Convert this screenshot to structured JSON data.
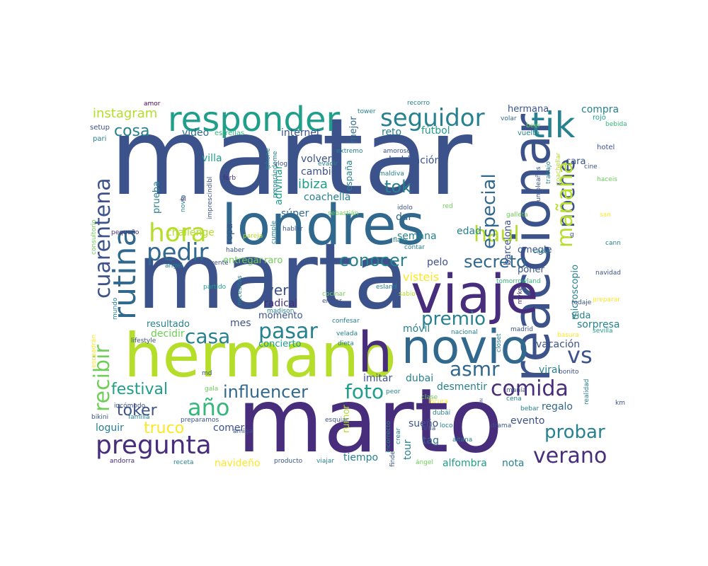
{
  "palette": {
    "navy": "#3b528b",
    "indigo": "#472d7b",
    "purple": "#440154",
    "blue": "#31688e",
    "teal": "#26828e",
    "teal2": "#1f9e89",
    "green": "#35b779",
    "lime": "#6ece58",
    "yellowgreen": "#b5de2b",
    "yellow": "#fde725"
  },
  "words": [
    {
      "text": "martar",
      "color": "navy"
    },
    {
      "text": "marta",
      "color": "navy"
    },
    {
      "text": "marto",
      "color": "indigo"
    },
    {
      "text": "londres",
      "color": "blue"
    },
    {
      "text": "hermano",
      "color": "yellowgreen"
    },
    {
      "text": "reaccionar",
      "color": "navy"
    },
    {
      "text": "viaje",
      "color": "indigo"
    },
    {
      "text": "novio",
      "color": "blue"
    },
    {
      "text": "h",
      "color": "indigo"
    },
    {
      "text": "responder",
      "color": "teal2"
    },
    {
      "text": "tik",
      "color": "teal"
    },
    {
      "text": "seguidor",
      "color": "teal"
    },
    {
      "text": "rutina",
      "color": "blue"
    },
    {
      "text": "cuarentena",
      "color": "navy"
    },
    {
      "text": "hora",
      "color": "yellowgreen"
    },
    {
      "text": "pedir",
      "color": "blue"
    },
    {
      "text": "noche",
      "color": "navy"
    },
    {
      "text": "mañana",
      "color": "yellowgreen"
    },
    {
      "text": "haul",
      "color": "yellowgreen"
    },
    {
      "text": "especial",
      "color": "blue"
    },
    {
      "text": "tok",
      "color": "teal"
    },
    {
      "text": "cosa",
      "color": "teal"
    },
    {
      "text": "instagram",
      "color": "yellowgreen"
    },
    {
      "text": "casa",
      "color": "teal"
    },
    {
      "text": "pasar",
      "color": "teal"
    },
    {
      "text": "conocer",
      "color": "teal"
    },
    {
      "text": "secreto",
      "color": "blue"
    },
    {
      "text": "premio",
      "color": "teal"
    },
    {
      "text": "comida",
      "color": "indigo"
    },
    {
      "text": "vs",
      "color": "navy"
    },
    {
      "text": "asmr",
      "color": "blue"
    },
    {
      "text": "recibir",
      "color": "lime"
    },
    {
      "text": "año",
      "color": "green"
    },
    {
      "text": "festival",
      "color": "teal2"
    },
    {
      "text": "influencer",
      "color": "blue"
    },
    {
      "text": "foto",
      "color": "teal2"
    },
    {
      "text": "pregunta",
      "color": "indigo"
    },
    {
      "text": "truco",
      "color": "yellow"
    },
    {
      "text": "toker",
      "color": "navy"
    },
    {
      "text": "probar",
      "color": "teal"
    },
    {
      "text": "verano",
      "color": "indigo"
    },
    {
      "text": "ver",
      "color": "navy"
    },
    {
      "text": "video",
      "color": "blue"
    },
    {
      "text": "villa",
      "color": "teal2"
    },
    {
      "text": "internet",
      "color": "navy"
    },
    {
      "text": "reto",
      "color": "teal"
    },
    {
      "text": "fútbol",
      "color": "teal2"
    },
    {
      "text": "volver",
      "color": "navy"
    },
    {
      "text": "habitación",
      "color": "navy"
    },
    {
      "text": "cambio",
      "color": "navy"
    },
    {
      "text": "ibiza",
      "color": "teal2"
    },
    {
      "text": "coachella",
      "color": "teal"
    },
    {
      "text": "súper",
      "color": "blue"
    },
    {
      "text": "semana",
      "color": "teal"
    },
    {
      "text": "dar",
      "color": "blue"
    },
    {
      "text": "edad",
      "color": "teal"
    },
    {
      "text": "barcelona",
      "color": "navy"
    },
    {
      "text": "omegle",
      "color": "navy"
    },
    {
      "text": "microscopio",
      "color": "teal"
    },
    {
      "text": "vida",
      "color": "teal"
    },
    {
      "text": "poner",
      "color": "navy"
    },
    {
      "text": "compra",
      "color": "teal"
    },
    {
      "text": "hermana",
      "color": "navy"
    },
    {
      "text": "cara",
      "color": "navy"
    },
    {
      "text": "challenge",
      "color": "yellowgreen"
    },
    {
      "text": "prueba",
      "color": "teal"
    },
    {
      "text": "adivinar",
      "color": "teal2"
    },
    {
      "text": "ropa",
      "color": "navy"
    },
    {
      "text": "entregar",
      "color": "lime"
    },
    {
      "text": "raro",
      "color": "lime"
    },
    {
      "text": "visteis",
      "color": "yellow"
    },
    {
      "text": "radical",
      "color": "indigo"
    },
    {
      "text": "mes",
      "color": "navy"
    },
    {
      "text": "resultado",
      "color": "teal"
    },
    {
      "text": "momento",
      "color": "navy"
    },
    {
      "text": "decidir",
      "color": "lime"
    },
    {
      "text": "concierto",
      "color": "teal2"
    },
    {
      "text": "móvil",
      "color": "teal"
    },
    {
      "text": "sorpresa",
      "color": "teal"
    },
    {
      "text": "vacación",
      "color": "navy"
    },
    {
      "text": "viral",
      "color": "teal"
    },
    {
      "text": "dubai",
      "color": "teal"
    },
    {
      "text": "imitar",
      "color": "navy"
    },
    {
      "text": "desmentir",
      "color": "teal"
    },
    {
      "text": "regalo",
      "color": "blue"
    },
    {
      "text": "evento",
      "color": "navy"
    },
    {
      "text": "comer",
      "color": "navy"
    },
    {
      "text": "loguir",
      "color": "teal"
    },
    {
      "text": "rumor",
      "color": "yellowgreen"
    },
    {
      "text": "sueño",
      "color": "navy"
    },
    {
      "text": "tag",
      "color": "blue"
    },
    {
      "text": "tour",
      "color": "teal"
    },
    {
      "text": "navideño",
      "color": "yellow"
    },
    {
      "text": "tiempo",
      "color": "teal"
    },
    {
      "text": "alfombra",
      "color": "teal2"
    },
    {
      "text": "nota",
      "color": "teal"
    },
    {
      "text": "mejor",
      "color": "blue"
    },
    {
      "text": "pelo",
      "color": "navy"
    },
    {
      "text": "españa",
      "color": "teal"
    },
    {
      "text": "amor",
      "color": "purple"
    },
    {
      "text": "setup",
      "color": "navy"
    },
    {
      "text": "pari",
      "color": "teal"
    },
    {
      "text": "estrellas",
      "color": "green"
    },
    {
      "text": "tower",
      "color": "teal"
    },
    {
      "text": "recorro",
      "color": "teal"
    },
    {
      "text": "volar",
      "color": "blue"
    },
    {
      "text": "beer",
      "color": "lime"
    },
    {
      "text": "rojo",
      "color": "teal2"
    },
    {
      "text": "bebida",
      "color": "green"
    },
    {
      "text": "vuelta",
      "color": "teal"
    },
    {
      "text": "hotel",
      "color": "navy"
    },
    {
      "text": "extremo",
      "color": "teal"
    },
    {
      "text": "amoroso",
      "color": "navy"
    },
    {
      "text": "maldiva",
      "color": "teal"
    },
    {
      "text": "iphone",
      "color": "teal"
    },
    {
      "text": "vlog",
      "color": "navy"
    },
    {
      "text": "evadir",
      "color": "teal"
    },
    {
      "text": "preparándome",
      "color": "teal"
    },
    {
      "text": "imprescindibl",
      "color": "navy"
    },
    {
      "text": "novia",
      "color": "teal"
    },
    {
      "text": "forb",
      "color": "indigo"
    },
    {
      "text": "cumpleaños",
      "color": "navy"
    },
    {
      "text": "trabajo",
      "color": "teal"
    },
    {
      "text": "coachellar",
      "color": "yellowgreen"
    },
    {
      "text": "cine",
      "color": "navy"
    },
    {
      "text": "haceis",
      "color": "lime"
    },
    {
      "text": "san",
      "color": "yellow"
    },
    {
      "text": "él",
      "color": "indigo"
    },
    {
      "text": "red",
      "color": "lime"
    },
    {
      "text": "pequeño",
      "color": "indigo"
    },
    {
      "text": "sebastián",
      "color": "lime"
    },
    {
      "text": "idolo",
      "color": "navy"
    },
    {
      "text": "galleta",
      "color": "lime"
    },
    {
      "text": "consultorio",
      "color": "lime"
    },
    {
      "text": "pareja",
      "color": "yellowgreen"
    },
    {
      "text": "cumple",
      "color": "teal"
    },
    {
      "text": "flags",
      "color": "teal"
    },
    {
      "text": "contar",
      "color": "teal"
    },
    {
      "text": "haber",
      "color": "navy"
    },
    {
      "text": "cádiz",
      "color": "teal"
    },
    {
      "text": "cann",
      "color": "teal"
    },
    {
      "text": "angel",
      "color": "teal"
    },
    {
      "text": "vente",
      "color": "navy"
    },
    {
      "text": "navidad",
      "color": "navy"
    },
    {
      "text": "tomorrowland",
      "color": "green"
    },
    {
      "text": "partido",
      "color": "teal2"
    },
    {
      "text": "esland",
      "color": "teal"
    },
    {
      "text": "cocinar",
      "color": "lime"
    },
    {
      "text": "sabio",
      "color": "yellowgreen"
    },
    {
      "text": "mundo",
      "color": "teal"
    },
    {
      "text": "necesitas",
      "color": "teal"
    },
    {
      "text": "madison",
      "color": "teal"
    },
    {
      "text": "entrar",
      "color": "navy"
    },
    {
      "text": "myke",
      "color": "indigo"
    },
    {
      "text": "rodaje",
      "color": "navy"
    },
    {
      "text": "preparar",
      "color": "yellow"
    },
    {
      "text": "confesar",
      "color": "teal"
    },
    {
      "text": "velada",
      "color": "teal"
    },
    {
      "text": "dieta",
      "color": "teal"
    },
    {
      "text": "nacional",
      "color": "teal"
    },
    {
      "text": "closet",
      "color": "teal"
    },
    {
      "text": "madrid",
      "color": "navy"
    },
    {
      "text": "basura",
      "color": "yellow"
    },
    {
      "text": "sevilla",
      "color": "teal2"
    },
    {
      "text": "lifestyle",
      "color": "navy"
    },
    {
      "text": "escuadrán",
      "color": "yellow"
    },
    {
      "text": "md",
      "color": "navy"
    },
    {
      "text": "bonito",
      "color": "navy"
    },
    {
      "text": "gala",
      "color": "lime"
    },
    {
      "text": "peor",
      "color": "teal"
    },
    {
      "text": "clase",
      "color": "lime"
    },
    {
      "text": "manía",
      "color": "navy"
    },
    {
      "text": "cena",
      "color": "teal"
    },
    {
      "text": "realidad",
      "color": "teal"
    },
    {
      "text": "km",
      "color": "navy"
    },
    {
      "text": "incómodo",
      "color": "navy"
    },
    {
      "text": "bikini",
      "color": "navy"
    },
    {
      "text": "familia",
      "color": "teal"
    },
    {
      "text": "preparamos",
      "color": "navy"
    },
    {
      "text": "esquiar",
      "color": "navy"
    },
    {
      "text": "dubái",
      "color": "teal"
    },
    {
      "text": "locura",
      "color": "yellow"
    },
    {
      "text": "il",
      "color": "navy"
    },
    {
      "text": "bebar",
      "color": "teal"
    },
    {
      "text": "hablar",
      "color": "navy"
    },
    {
      "text": "amiga",
      "color": "navy"
    },
    {
      "text": "incorrecto",
      "color": "teal"
    },
    {
      "text": "crear",
      "color": "teal"
    },
    {
      "text": "finde",
      "color": "navy"
    },
    {
      "text": "feria",
      "color": "navy"
    },
    {
      "text": "loco",
      "color": "teal"
    },
    {
      "text": "drama",
      "color": "navy"
    },
    {
      "text": "aitana",
      "color": "teal"
    },
    {
      "text": "andorra",
      "color": "indigo"
    },
    {
      "text": "receta",
      "color": "teal"
    },
    {
      "text": "producto",
      "color": "navy"
    },
    {
      "text": "viajar",
      "color": "teal"
    },
    {
      "text": "ángel",
      "color": "lime"
    },
    {
      "text": "g",
      "color": "navy"
    }
  ]
}
